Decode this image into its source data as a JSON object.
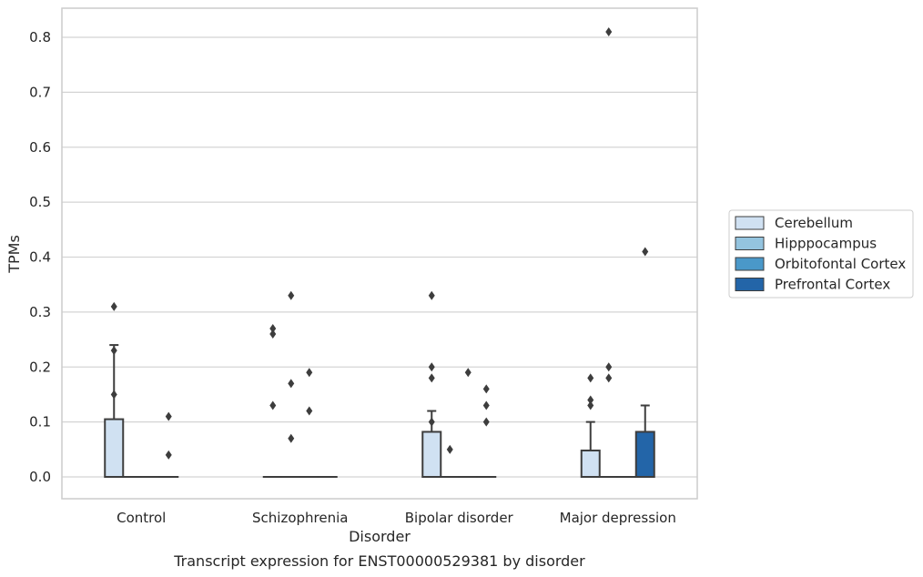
{
  "chart_data": {
    "type": "box",
    "title": "",
    "caption": "Transcript expression for ENST00000529381 by disorder",
    "xlabel": "Disorder",
    "ylabel": "TPMs",
    "ylim": [
      -0.04,
      0.855
    ],
    "yticks": [
      "0.0",
      "0.1",
      "0.2",
      "0.3",
      "0.4",
      "0.5",
      "0.6",
      "0.7",
      "0.8"
    ],
    "grid": "horizontal",
    "legend_position": "right",
    "categories": [
      "Control",
      "Schizophrenia",
      "Bipolar disorder",
      "Major depression"
    ],
    "series": [
      {
        "name": "Cerebellum",
        "color": "#d0e1f2",
        "boxes": [
          {
            "q1": 0.0,
            "median": 0.0,
            "q3": 0.105,
            "whisker_low": 0.0,
            "whisker_high": 0.24,
            "outliers": [
              0.31,
              0.23,
              0.15
            ]
          },
          {
            "q1": 0.0,
            "median": 0.0,
            "q3": 0.0,
            "whisker_low": 0.0,
            "whisker_high": 0.0,
            "outliers": [
              0.27,
              0.26,
              0.13
            ]
          },
          {
            "q1": 0.0,
            "median": 0.0,
            "q3": 0.082,
            "whisker_low": 0.0,
            "whisker_high": 0.12,
            "outliers": [
              0.33,
              0.2,
              0.18,
              0.1
            ]
          },
          {
            "q1": 0.0,
            "median": 0.0,
            "q3": 0.048,
            "whisker_low": 0.0,
            "whisker_high": 0.1,
            "outliers": [
              0.18,
              0.14,
              0.13
            ]
          }
        ]
      },
      {
        "name": "Hipppocampus",
        "color": "#94c4df",
        "boxes": [
          {
            "q1": 0.0,
            "median": 0.0,
            "q3": 0.0,
            "whisker_low": 0.0,
            "whisker_high": 0.0,
            "outliers": []
          },
          {
            "q1": 0.0,
            "median": 0.0,
            "q3": 0.0,
            "whisker_low": 0.0,
            "whisker_high": 0.0,
            "outliers": [
              0.33,
              0.17,
              0.07
            ]
          },
          {
            "q1": 0.0,
            "median": 0.0,
            "q3": 0.0,
            "whisker_low": 0.0,
            "whisker_high": 0.0,
            "outliers": [
              0.05
            ]
          },
          {
            "q1": 0.0,
            "median": 0.0,
            "q3": 0.0,
            "whisker_low": 0.0,
            "whisker_high": 0.0,
            "outliers": [
              0.81,
              0.2,
              0.18
            ]
          }
        ]
      },
      {
        "name": "Orbitofontal Cortex",
        "color": "#4a98c9",
        "boxes": [
          {
            "q1": 0.0,
            "median": 0.0,
            "q3": 0.0,
            "whisker_low": 0.0,
            "whisker_high": 0.0,
            "outliers": []
          },
          {
            "q1": 0.0,
            "median": 0.0,
            "q3": 0.0,
            "whisker_low": 0.0,
            "whisker_high": 0.0,
            "outliers": [
              0.19,
              0.12
            ]
          },
          {
            "q1": 0.0,
            "median": 0.0,
            "q3": 0.0,
            "whisker_low": 0.0,
            "whisker_high": 0.0,
            "outliers": [
              0.19
            ]
          },
          {
            "q1": 0.0,
            "median": 0.0,
            "q3": 0.0,
            "whisker_low": 0.0,
            "whisker_high": 0.0,
            "outliers": []
          }
        ]
      },
      {
        "name": "Prefrontal Cortex",
        "color": "#2365a8",
        "boxes": [
          {
            "q1": 0.0,
            "median": 0.0,
            "q3": 0.0,
            "whisker_low": 0.0,
            "whisker_high": 0.0,
            "outliers": [
              0.11,
              0.04
            ]
          },
          {
            "q1": 0.0,
            "median": 0.0,
            "q3": 0.0,
            "whisker_low": 0.0,
            "whisker_high": 0.0,
            "outliers": []
          },
          {
            "q1": 0.0,
            "median": 0.0,
            "q3": 0.0,
            "whisker_low": 0.0,
            "whisker_high": 0.0,
            "outliers": [
              0.16,
              0.13,
              0.1
            ]
          },
          {
            "q1": 0.0,
            "median": 0.0,
            "q3": 0.082,
            "whisker_low": 0.0,
            "whisker_high": 0.13,
            "outliers": [
              0.41
            ]
          }
        ]
      }
    ]
  }
}
